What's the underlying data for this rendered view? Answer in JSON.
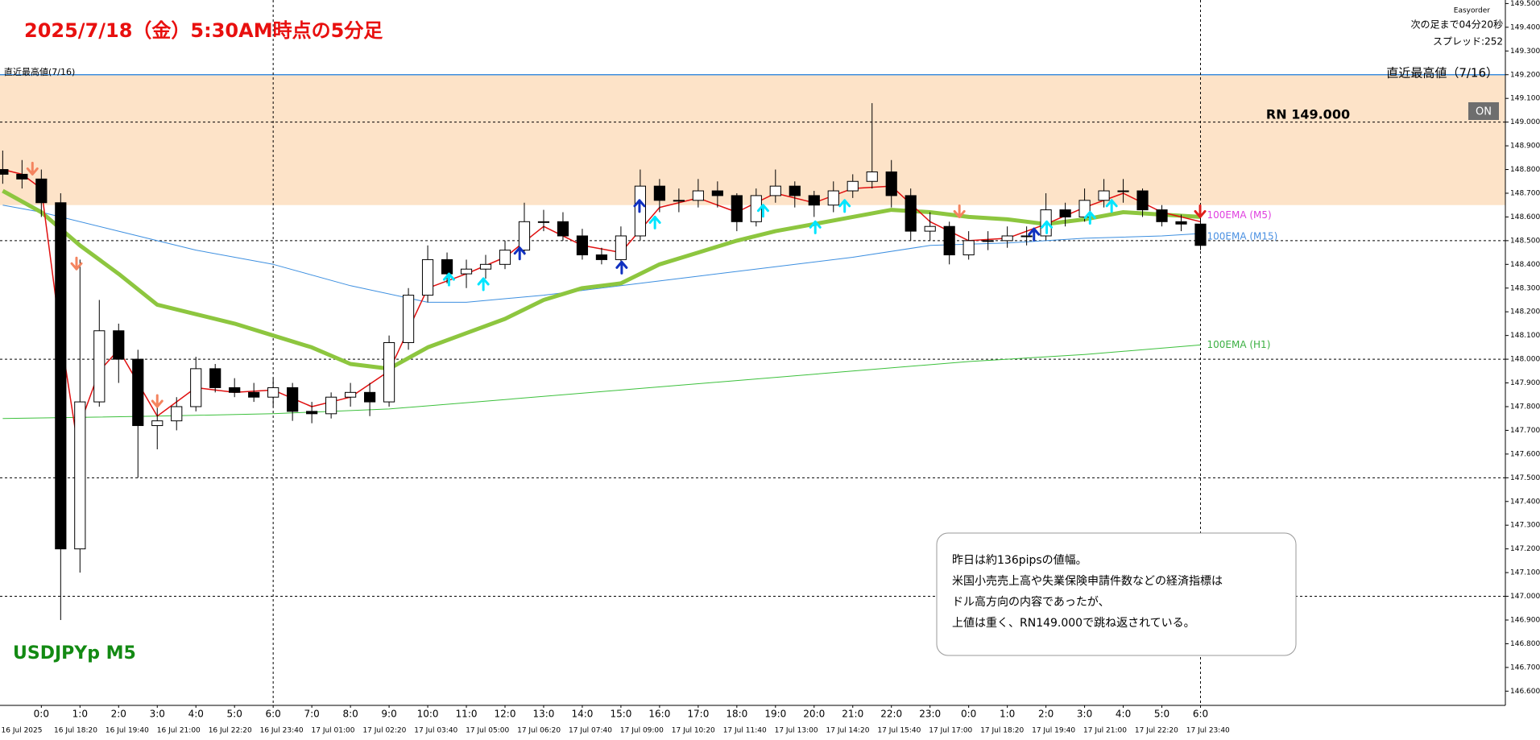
{
  "chart_data": {
    "type": "candlestick",
    "title": "2025/7/18（金）5:30AM時点の5分足",
    "symbol_label": "USDJPYp M5",
    "info": [
      "Easyorder",
      "次の足まで04分20秒",
      "スプレッド:252"
    ],
    "high_label_left": "直近最高値(7/16)",
    "high_label_right": "直近最高値（7/16）",
    "high_line": 149.2,
    "zone": [
      148.65,
      149.2
    ],
    "zone_color": "#fde3c8",
    "rn_label": "RN 149.000",
    "button": "ON",
    "annotation": [
      "昨日は約136pipsの値幅。",
      "米国小売売上高や失業保険申請件数などの経済指標は",
      "ドル高方向の内容であったが、",
      "上値は重く、RN149.000で跳ね返されている。"
    ],
    "xlim": [
      -1.07,
      37.89
    ],
    "ylim": [
      146.54,
      149.515
    ],
    "yticks": [
      {
        "value": 149.5,
        "label": "149.500"
      },
      {
        "value": 149.4,
        "label": "149.400"
      },
      {
        "value": 149.3,
        "label": "149.300"
      },
      {
        "value": 149.2,
        "label": "149.200"
      },
      {
        "value": 149.1,
        "label": "149.100"
      },
      {
        "value": 149.0,
        "label": "149.000"
      },
      {
        "value": 148.9,
        "label": "148.900"
      },
      {
        "value": 148.8,
        "label": "148.800"
      },
      {
        "value": 148.7,
        "label": "148.700"
      },
      {
        "value": 148.6,
        "label": "148.600"
      },
      {
        "value": 148.5,
        "label": "148.500"
      },
      {
        "value": 148.4,
        "label": "148.400"
      },
      {
        "value": 148.3,
        "label": "148.300"
      },
      {
        "value": 148.2,
        "label": "148.200"
      },
      {
        "value": 148.1,
        "label": "148.100"
      },
      {
        "value": 148.0,
        "label": "148.000"
      },
      {
        "value": 147.9,
        "label": "147.900"
      },
      {
        "value": 147.8,
        "label": "147.800"
      },
      {
        "value": 147.7,
        "label": "147.700"
      },
      {
        "value": 147.6,
        "label": "147.600"
      },
      {
        "value": 147.5,
        "label": "147.500"
      },
      {
        "value": 147.4,
        "label": "147.400"
      },
      {
        "value": 147.3,
        "label": "147.300"
      },
      {
        "value": 147.2,
        "label": "147.200"
      },
      {
        "value": 147.1,
        "label": "147.100"
      },
      {
        "value": 147.0,
        "label": "147.000"
      },
      {
        "value": 146.9,
        "label": "146.900"
      },
      {
        "value": 146.8,
        "label": "146.800"
      },
      {
        "value": 146.7,
        "label": "146.700"
      },
      {
        "value": 146.6,
        "label": "146.600"
      }
    ],
    "grid_lines": [
      149.0,
      148.5,
      148.0,
      147.5,
      147.0
    ],
    "vlines": [
      6,
      30
    ],
    "hour_labels": [
      "0:0",
      "1:0",
      "2:0",
      "3:0",
      "4:0",
      "5:0",
      "6:0",
      "7:0",
      "8:0",
      "9:0",
      "10:0",
      "11:0",
      "12:0",
      "13:0",
      "14:0",
      "15:0",
      "16:0",
      "17:0",
      "18:0",
      "19:0",
      "20:0",
      "21:0",
      "22:0",
      "23:0",
      "0:0",
      "1:0",
      "2:0",
      "3:0",
      "4:0",
      "5:0",
      "6:0"
    ],
    "date_labels": [
      "16 Jul 2025",
      "16 Jul 18:20",
      "16 Jul 19:40",
      "16 Jul 21:00",
      "16 Jul 22:20",
      "16 Jul 23:40",
      "17 Jul 01:00",
      "17 Jul 02:20",
      "17 Jul 03:40",
      "17 Jul 05:00",
      "17 Jul 06:20",
      "17 Jul 07:40",
      "17 Jul 09:00",
      "17 Jul 10:20",
      "17 Jul 11:40",
      "17 Jul 13:00",
      "17 Jul 14:20",
      "17 Jul 15:40",
      "17 Jul 17:00",
      "17 Jul 18:20",
      "17 Jul 19:40",
      "17 Jul 21:00",
      "17 Jul 22:20",
      "17 Jul 23:40"
    ],
    "candles": {
      "x": [
        -1,
        -0.5,
        0,
        0.5,
        1,
        1.5,
        2,
        2.5,
        3,
        3.5,
        4,
        4.5,
        5,
        5.5,
        6,
        6.5,
        7,
        7.5,
        8,
        8.5,
        9,
        9.5,
        10,
        10.5,
        11,
        11.5,
        12,
        12.5,
        13,
        13.5,
        14,
        14.5,
        15,
        15.5,
        16,
        16.5,
        17,
        17.5,
        18,
        18.5,
        19,
        19.5,
        20,
        20.5,
        21,
        21.5,
        22,
        22.5,
        23,
        23.5,
        24,
        24.5,
        25,
        25.5,
        26,
        26.5,
        27,
        27.5,
        28,
        28.5,
        29,
        29.5,
        30
      ],
      "open": [
        148.8,
        148.78,
        148.76,
        148.66,
        147.2,
        147.82,
        148.12,
        148.0,
        147.72,
        147.74,
        147.8,
        147.96,
        147.88,
        147.86,
        147.84,
        147.88,
        147.78,
        147.77,
        147.84,
        147.86,
        147.82,
        148.07,
        148.27,
        148.42,
        148.36,
        148.38,
        148.4,
        148.46,
        148.58,
        148.58,
        148.52,
        148.44,
        148.42,
        148.52,
        148.73,
        148.67,
        148.67,
        148.71,
        148.69,
        148.58,
        148.69,
        148.73,
        148.69,
        148.65,
        148.71,
        148.75,
        148.79,
        148.69,
        148.54,
        148.56,
        148.44,
        148.5,
        148.5,
        148.52,
        148.52,
        148.63,
        148.6,
        148.67,
        148.71,
        148.71,
        148.63,
        148.58,
        148.57
      ],
      "high": [
        148.88,
        148.84,
        148.8,
        148.7,
        148.42,
        148.25,
        148.15,
        148.04,
        147.8,
        147.84,
        148.01,
        147.98,
        147.92,
        147.9,
        147.92,
        147.9,
        147.82,
        147.86,
        147.9,
        147.9,
        148.1,
        148.3,
        148.48,
        148.45,
        148.42,
        148.44,
        148.5,
        148.66,
        148.63,
        148.62,
        148.55,
        148.47,
        148.56,
        148.8,
        148.76,
        148.72,
        148.76,
        148.75,
        148.7,
        148.72,
        148.8,
        148.75,
        148.71,
        148.75,
        148.78,
        149.08,
        148.84,
        148.72,
        148.62,
        148.58,
        148.54,
        148.54,
        148.56,
        148.56,
        148.7,
        148.66,
        148.72,
        148.76,
        148.76,
        148.72,
        148.65,
        148.61,
        148.62
      ],
      "low": [
        148.74,
        148.72,
        148.6,
        146.9,
        147.1,
        147.8,
        147.9,
        147.5,
        147.62,
        147.7,
        147.78,
        147.86,
        147.84,
        147.82,
        147.8,
        147.74,
        147.73,
        147.75,
        147.8,
        147.76,
        147.8,
        148.04,
        148.24,
        148.32,
        148.3,
        148.34,
        148.38,
        148.44,
        148.54,
        148.5,
        148.42,
        148.4,
        148.4,
        148.5,
        148.62,
        148.62,
        148.64,
        148.64,
        148.54,
        148.56,
        148.66,
        148.64,
        148.6,
        148.62,
        148.68,
        148.72,
        148.64,
        148.5,
        148.5,
        148.4,
        148.42,
        148.46,
        148.47,
        148.48,
        148.5,
        148.56,
        148.58,
        148.64,
        148.66,
        148.6,
        148.56,
        148.54,
        148.46
      ],
      "close": [
        148.78,
        148.76,
        148.66,
        147.2,
        147.82,
        148.12,
        148.0,
        147.72,
        147.74,
        147.8,
        147.96,
        147.88,
        147.86,
        147.84,
        147.88,
        147.78,
        147.77,
        147.84,
        147.86,
        147.82,
        148.07,
        148.27,
        148.42,
        148.36,
        148.38,
        148.4,
        148.46,
        148.58,
        148.58,
        148.52,
        148.44,
        148.42,
        148.52,
        148.73,
        148.67,
        148.67,
        148.71,
        148.69,
        148.58,
        148.69,
        148.73,
        148.69,
        148.65,
        148.71,
        148.75,
        148.79,
        148.69,
        148.54,
        148.56,
        148.44,
        148.5,
        148.5,
        148.52,
        148.52,
        148.63,
        148.6,
        148.67,
        148.71,
        148.71,
        148.63,
        148.58,
        148.57,
        148.48
      ]
    },
    "series": [
      {
        "name": "100EMA (H1)",
        "color": "#3cc03c",
        "label_color": "#3cb043",
        "width": 1,
        "x": [
          -1,
          3,
          6,
          9,
          12,
          15,
          18,
          21,
          24,
          27,
          30
        ],
        "values": [
          147.75,
          147.76,
          147.77,
          147.79,
          147.83,
          147.87,
          147.91,
          147.95,
          147.99,
          148.02,
          148.06
        ]
      },
      {
        "name": "100EMA (M15)",
        "color": "#3d8fe0",
        "label_color": "#4a90e2",
        "width": 1,
        "x": [
          -1,
          0,
          2,
          4,
          6,
          8,
          10,
          11,
          13,
          15,
          17,
          19,
          21,
          23,
          25,
          27,
          29,
          30
        ],
        "values": [
          148.65,
          148.62,
          148.54,
          148.46,
          148.4,
          148.31,
          148.24,
          148.24,
          148.27,
          148.31,
          148.35,
          148.39,
          148.43,
          148.48,
          148.49,
          148.51,
          148.52,
          148.53
        ]
      },
      {
        "name": "100EMA (M5)",
        "color": "#8dc63f",
        "label_color": "#e040e0",
        "width": 5,
        "x": [
          -1,
          0,
          1,
          2,
          3,
          4,
          5,
          6,
          7,
          8,
          9,
          10,
          11,
          12,
          13,
          14,
          15,
          16,
          17,
          18,
          19,
          20,
          21,
          22,
          23,
          24,
          25,
          26,
          27,
          28,
          29,
          30
        ],
        "values": [
          148.71,
          148.62,
          148.48,
          148.36,
          148.23,
          148.19,
          148.15,
          148.1,
          148.05,
          147.98,
          147.96,
          148.05,
          148.11,
          148.17,
          148.25,
          148.3,
          148.32,
          148.4,
          148.45,
          148.5,
          148.54,
          148.57,
          148.6,
          148.63,
          148.62,
          148.6,
          148.59,
          148.57,
          148.59,
          148.62,
          148.61,
          148.6
        ]
      },
      {
        "color": "#e01010",
        "width": 1.5,
        "x": [
          -1,
          -0.5,
          0,
          0.5,
          0.9,
          1.5,
          2,
          2.5,
          3,
          4,
          5,
          6,
          7,
          8,
          9,
          10,
          11,
          12,
          13,
          14,
          15,
          16,
          17,
          18,
          19,
          20,
          21,
          22,
          23,
          24,
          25,
          26,
          27,
          28,
          29,
          30
        ],
        "values": [
          148.8,
          148.78,
          148.72,
          148.1,
          147.68,
          147.95,
          148.04,
          147.9,
          147.76,
          147.88,
          147.86,
          147.87,
          147.8,
          147.84,
          147.95,
          148.3,
          148.36,
          148.43,
          148.56,
          148.48,
          148.45,
          148.64,
          148.68,
          148.62,
          148.7,
          148.66,
          148.72,
          148.73,
          148.58,
          148.5,
          148.51,
          148.57,
          148.64,
          148.7,
          148.62,
          148.58
        ]
      }
    ],
    "arrows": {
      "x": [
        10.55,
        11.44,
        12.38,
        15.02,
        15.48,
        15.88,
        18.68,
        20.03,
        20.79,
        25.69,
        26.02,
        27.14,
        27.7,
        -0.23,
        0.91,
        3.0,
        23.76,
        29.99
      ],
      "y": [
        148.36,
        148.34,
        148.47,
        148.41,
        148.67,
        148.6,
        148.65,
        148.58,
        148.67,
        148.55,
        148.58,
        148.62,
        148.67,
        148.78,
        148.38,
        147.8,
        148.6,
        148.6
      ],
      "direction": [
        "up",
        "up",
        "up",
        "up",
        "up",
        "up",
        "up",
        "up",
        "up",
        "up",
        "up",
        "up",
        "up",
        "down",
        "down",
        "down",
        "down",
        "down"
      ],
      "color": [
        "#00e5ff",
        "#00e5ff",
        "#1030c0",
        "#1030c0",
        "#1030c0",
        "#00e5ff",
        "#00e5ff",
        "#00e5ff",
        "#00e5ff",
        "#1030c0",
        "#00e5ff",
        "#00e5ff",
        "#00e5ff",
        "#f4845f",
        "#f4845f",
        "#f4845f",
        "#f4845f",
        "#e0201b"
      ]
    }
  }
}
